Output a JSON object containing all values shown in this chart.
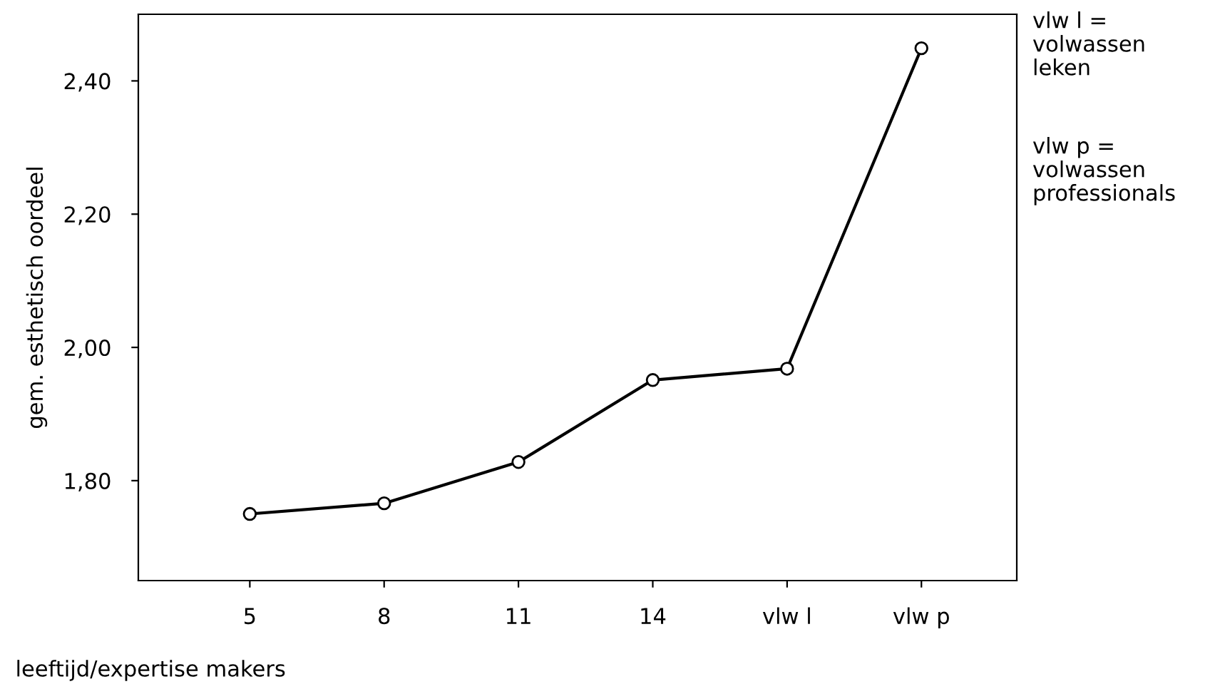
{
  "chart_data": {
    "type": "line",
    "xlabel": "leeftijd/expertise makers",
    "ylabel": "gem. esthetisch oordeel",
    "categories": [
      "5",
      "8",
      "11",
      "14",
      "vlw l",
      "vlw p"
    ],
    "values": [
      1.75,
      1.766,
      1.828,
      1.951,
      1.968,
      2.449
    ],
    "color": "#000000",
    "marker": "circle",
    "line_style": "solid",
    "ylim": [
      1.65,
      2.5
    ],
    "yticks": [
      {
        "value": 1.8,
        "label": "1,80"
      },
      {
        "value": 2.0,
        "label": "2,00"
      },
      {
        "value": 2.2,
        "label": "2,20"
      },
      {
        "value": 2.4,
        "label": "2,40"
      }
    ],
    "grid": false,
    "legend": false,
    "annotations": [
      "vlw l =\nvolwassen\nleken",
      "vlw p =\nvolwassen\nprofessionals"
    ]
  }
}
